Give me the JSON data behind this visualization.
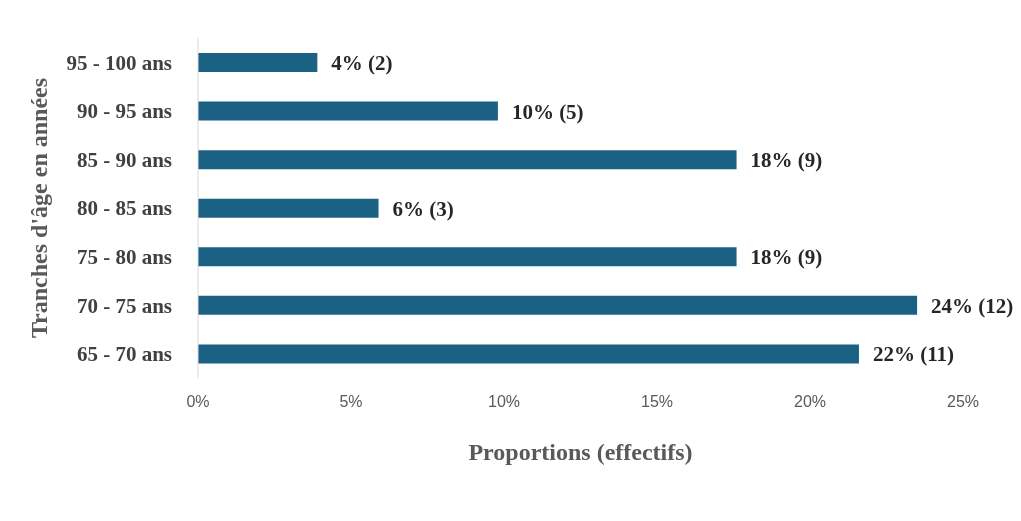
{
  "chart_data": {
    "type": "bar",
    "orientation": "horizontal",
    "xlabel": "Proportions (effectifs)",
    "ylabel": "Tranches d'âge en années",
    "categories": [
      "95 - 100 ans",
      "90 - 95 ans",
      "85 - 90 ans",
      "80 - 85 ans",
      "75 - 80 ans",
      "70 - 75 ans",
      "65 - 70 ans"
    ],
    "values": [
      3.9,
      9.8,
      17.6,
      5.9,
      17.6,
      23.5,
      21.6
    ],
    "value_labels": [
      "4% (2)",
      "10% (5)",
      "18% (9)",
      "6% (3)",
      "18% (9)",
      "24% (12)",
      "22% (11)"
    ],
    "color": "#1b6184",
    "xlim": [
      0,
      25
    ],
    "xticks": [
      {
        "value": 0,
        "label": "0%"
      },
      {
        "value": 5,
        "label": "5%"
      },
      {
        "value": 10,
        "label": "10%"
      },
      {
        "value": 15,
        "label": "15%"
      },
      {
        "value": 20,
        "label": "20%"
      },
      {
        "value": 25,
        "label": "25%"
      }
    ],
    "grid": false,
    "legend": false
  }
}
